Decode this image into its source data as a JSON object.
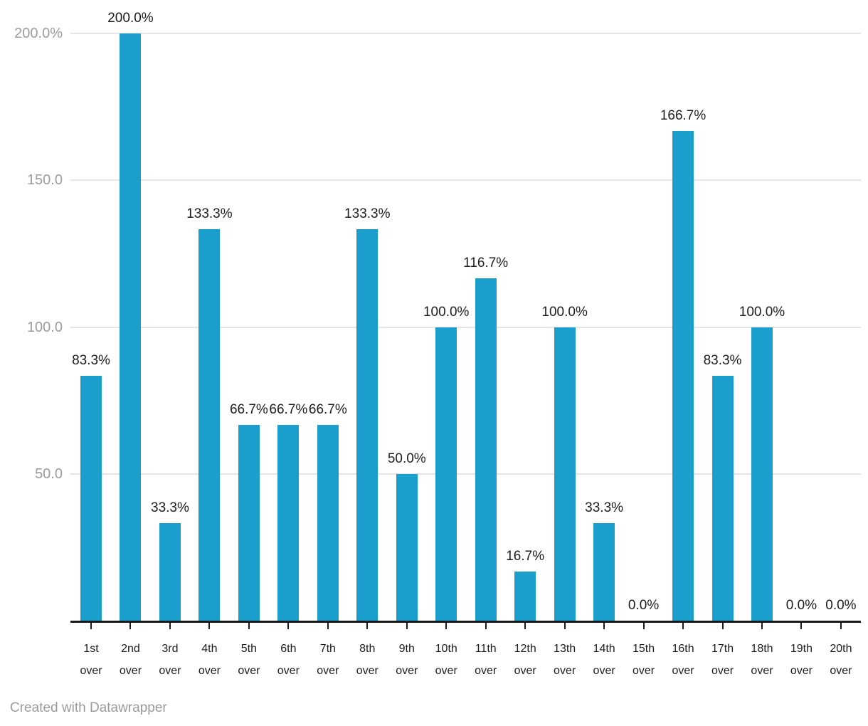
{
  "chart_data": {
    "type": "bar",
    "categories": [
      "1st",
      "2nd",
      "3rd",
      "4th",
      "5th",
      "6th",
      "7th",
      "8th",
      "9th",
      "10th",
      "11th",
      "12th",
      "13th",
      "14th",
      "15th",
      "16th",
      "17th",
      "18th",
      "19th",
      "20th"
    ],
    "category_suffix": "over",
    "values": [
      83.3,
      200.0,
      33.3,
      133.3,
      66.7,
      66.7,
      66.7,
      133.3,
      50.0,
      100.0,
      116.7,
      16.7,
      100.0,
      33.3,
      0.0,
      166.7,
      83.3,
      100.0,
      0.0,
      0.0
    ],
    "value_labels": [
      "83.3%",
      "200.0%",
      "33.3%",
      "133.3%",
      "66.7%",
      "66.7%",
      "66.7%",
      "133.3%",
      "50.0%",
      "100.0%",
      "116.7%",
      "16.7%",
      "100.0%",
      "33.3%",
      "0.0%",
      "166.7%",
      "83.3%",
      "100.0%",
      "0.0%",
      "0.0%"
    ],
    "y_axis": {
      "range": [
        0,
        200
      ],
      "ticks": [
        {
          "value": 200,
          "label": "200.0%"
        },
        {
          "value": 150,
          "label": "150.0"
        },
        {
          "value": 100,
          "label": "100.0"
        },
        {
          "value": 50,
          "label": "50.0"
        }
      ]
    },
    "title": "",
    "xlabel": "",
    "ylabel": "",
    "grid": true,
    "legend": "none",
    "colors": {
      "bar": "#1a9fcc",
      "axis_line": "#1a1a1a",
      "gridline": "#e5e5e5",
      "value_label": "#1d1d1d",
      "y_tick_label": "#9c9c9c",
      "x_tick_label": "#1d1d1d"
    }
  },
  "footer": {
    "credit": "Created with Datawrapper"
  }
}
